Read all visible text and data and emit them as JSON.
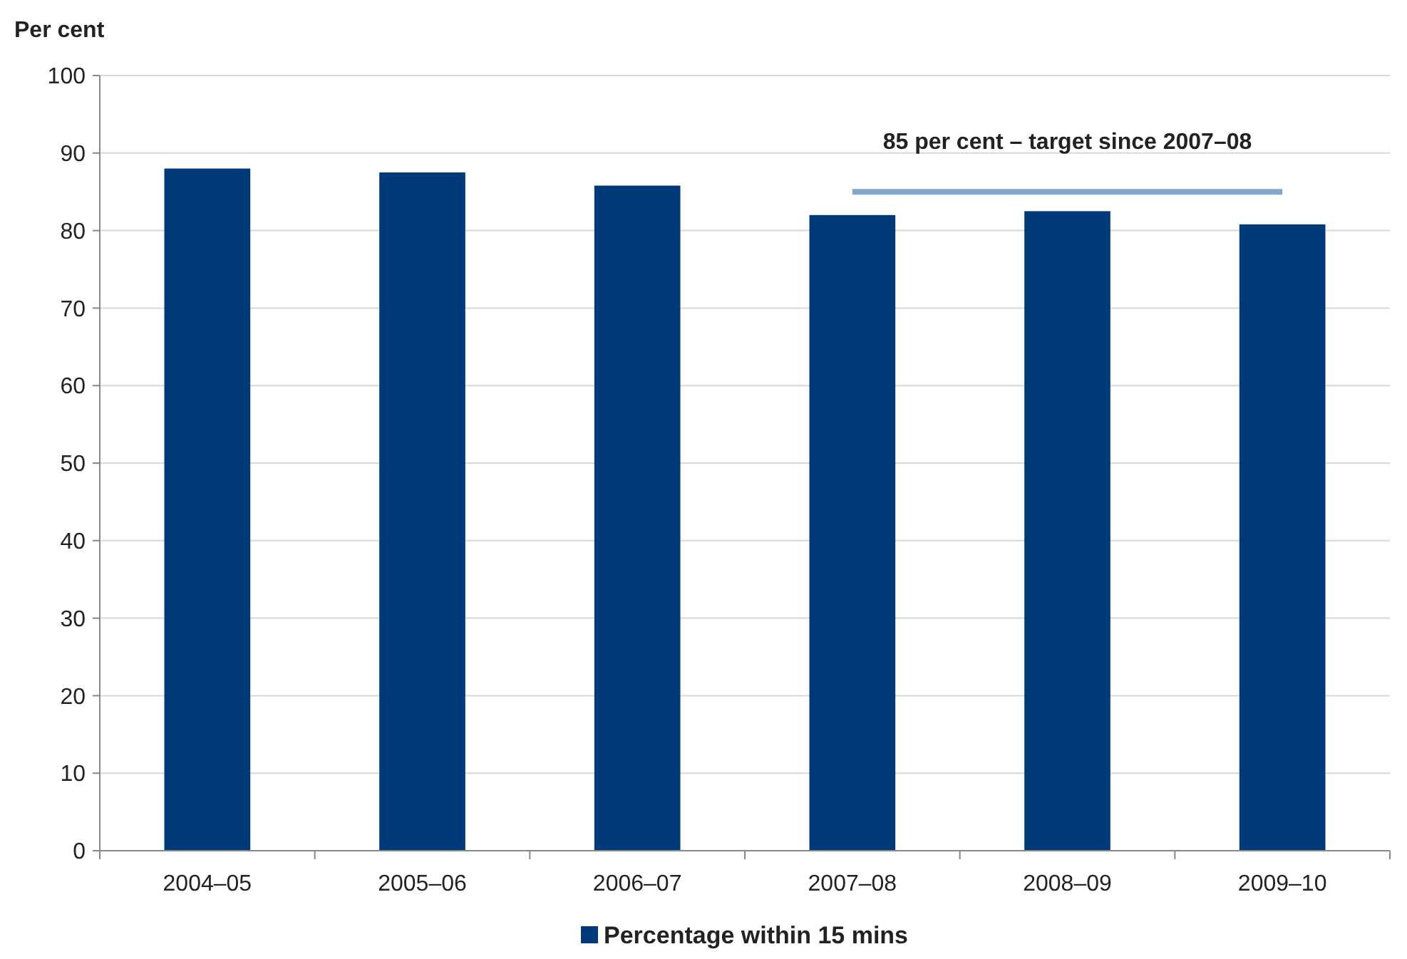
{
  "chart_data": {
    "type": "bar",
    "ylabel": "Per cent",
    "categories": [
      "2004–05",
      "2005–06",
      "2006–07",
      "2007–08",
      "2008–09",
      "2009–10"
    ],
    "series": [
      {
        "name": "Percentage within 15 mins",
        "color": "#003a78",
        "values": [
          88,
          87.5,
          85.8,
          82,
          82.5,
          80.8
        ]
      },
      {
        "type": "line",
        "color": "#7fa6cb",
        "values": [
          null,
          null,
          null,
          85,
          85,
          85
        ]
      }
    ],
    "annotations": [
      {
        "text": "85 per cent – target since 2007–08",
        "x": "2008–09",
        "y": 85
      }
    ],
    "ylim": [
      0,
      100
    ],
    "yticks": [
      0,
      10,
      20,
      30,
      40,
      50,
      60,
      70,
      80,
      90,
      100
    ],
    "grid": "y",
    "legend": "bottom"
  }
}
